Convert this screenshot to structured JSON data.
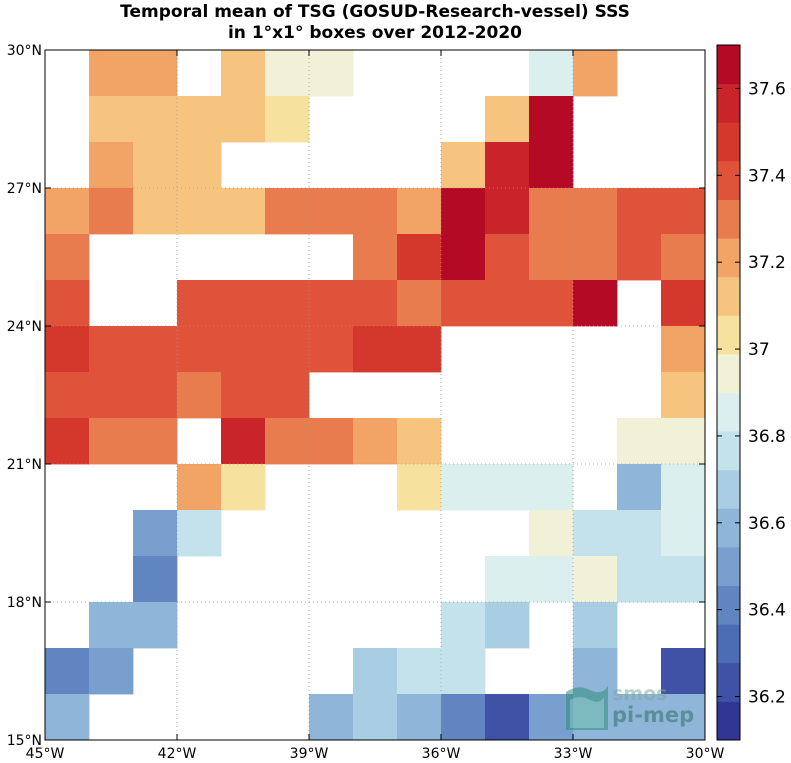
{
  "chart_data": {
    "type": "heatmap",
    "title": "Temporal mean of TSG (GOSUD-Research-vessel) SSS",
    "subtitle": "in 1°x1° boxes over 2012-2020",
    "x_ticks": [
      "45°W",
      "42°W",
      "39°W",
      "36°W",
      "33°W",
      "30°W"
    ],
    "y_ticks": [
      "15°N",
      "18°N",
      "21°N",
      "24°N",
      "27°N",
      "30°N"
    ],
    "lon_range": [
      -45,
      -30
    ],
    "lat_range": [
      15,
      30
    ],
    "cell_size_deg": 1,
    "colorbar": {
      "ticks": [
        "36.2",
        "36.4",
        "36.6",
        "36.8",
        "37",
        "37.2",
        "37.4",
        "37.6"
      ],
      "vmin": 36.1,
      "vmax": 37.7,
      "colors": [
        "#313695",
        "#3f52a6",
        "#4c6db5",
        "#6185c1",
        "#789fcd",
        "#8fb6d8",
        "#a9cde2",
        "#c4e2ec",
        "#dcefef",
        "#f0f1d6",
        "#f6e29e",
        "#f6c47e",
        "#f2a366",
        "#e97c4f",
        "#de5339",
        "#d4382d",
        "#c82429",
        "#b40a26"
      ]
    },
    "grid": true,
    "cells": [
      {
        "lon": -44,
        "lat": 29,
        "value": 37.24
      },
      {
        "lon": -43,
        "lat": 29,
        "value": 37.24
      },
      {
        "lon": -41,
        "lat": 29,
        "value": 37.08
      },
      {
        "lon": -40,
        "lat": 29,
        "value": 36.92
      },
      {
        "lon": -39,
        "lat": 29,
        "value": 36.92
      },
      {
        "lon": -34,
        "lat": 29,
        "value": 36.82
      },
      {
        "lon": -33,
        "lat": 29,
        "value": 37.24
      },
      {
        "lon": -44,
        "lat": 28,
        "value": 37.16
      },
      {
        "lon": -43,
        "lat": 28,
        "value": 37.08
      },
      {
        "lon": -42,
        "lat": 28,
        "value": 37.16
      },
      {
        "lon": -41,
        "lat": 28,
        "value": 37.08
      },
      {
        "lon": -40,
        "lat": 28,
        "value": 37.0
      },
      {
        "lon": -35,
        "lat": 28,
        "value": 37.08
      },
      {
        "lon": -34,
        "lat": 28,
        "value": 37.65
      },
      {
        "lon": -44,
        "lat": 27,
        "value": 37.24
      },
      {
        "lon": -43,
        "lat": 27,
        "value": 37.16
      },
      {
        "lon": -42,
        "lat": 27,
        "value": 37.16
      },
      {
        "lon": -36,
        "lat": 27,
        "value": 37.08
      },
      {
        "lon": -35,
        "lat": 27,
        "value": 37.55
      },
      {
        "lon": -34,
        "lat": 27,
        "value": 37.65
      },
      {
        "lon": -45,
        "lat": 26,
        "value": 37.24
      },
      {
        "lon": -44,
        "lat": 26,
        "value": 37.32
      },
      {
        "lon": -43,
        "lat": 26,
        "value": 37.16
      },
      {
        "lon": -42,
        "lat": 26,
        "value": 37.08
      },
      {
        "lon": -41,
        "lat": 26,
        "value": 37.08
      },
      {
        "lon": -40,
        "lat": 26,
        "value": 37.32
      },
      {
        "lon": -39,
        "lat": 26,
        "value": 37.32
      },
      {
        "lon": -38,
        "lat": 26,
        "value": 37.32
      },
      {
        "lon": -37,
        "lat": 26,
        "value": 37.24
      },
      {
        "lon": -36,
        "lat": 26,
        "value": 37.65
      },
      {
        "lon": -35,
        "lat": 26,
        "value": 37.55
      },
      {
        "lon": -34,
        "lat": 26,
        "value": 37.32
      },
      {
        "lon": -33,
        "lat": 26,
        "value": 37.32
      },
      {
        "lon": -32,
        "lat": 26,
        "value": 37.4
      },
      {
        "lon": -31,
        "lat": 26,
        "value": 37.4
      },
      {
        "lon": -45,
        "lat": 25,
        "value": 37.32
      },
      {
        "lon": -38,
        "lat": 25,
        "value": 37.32
      },
      {
        "lon": -37,
        "lat": 25,
        "value": 37.48
      },
      {
        "lon": -36,
        "lat": 25,
        "value": 37.65
      },
      {
        "lon": -35,
        "lat": 25,
        "value": 37.4
      },
      {
        "lon": -34,
        "lat": 25,
        "value": 37.32
      },
      {
        "lon": -33,
        "lat": 25,
        "value": 37.32
      },
      {
        "lon": -32,
        "lat": 25,
        "value": 37.4
      },
      {
        "lon": -31,
        "lat": 25,
        "value": 37.32
      },
      {
        "lon": -45,
        "lat": 24,
        "value": 37.4
      },
      {
        "lon": -42,
        "lat": 24,
        "value": 37.4
      },
      {
        "lon": -41,
        "lat": 24,
        "value": 37.4
      },
      {
        "lon": -40,
        "lat": 24,
        "value": 37.4
      },
      {
        "lon": -39,
        "lat": 24,
        "value": 37.4
      },
      {
        "lon": -38,
        "lat": 24,
        "value": 37.4
      },
      {
        "lon": -37,
        "lat": 24,
        "value": 37.32
      },
      {
        "lon": -36,
        "lat": 24,
        "value": 37.4
      },
      {
        "lon": -35,
        "lat": 24,
        "value": 37.4
      },
      {
        "lon": -34,
        "lat": 24,
        "value": 37.4
      },
      {
        "lon": -33,
        "lat": 24,
        "value": 37.65
      },
      {
        "lon": -31,
        "lat": 24,
        "value": 37.48
      },
      {
        "lon": -45,
        "lat": 23,
        "value": 37.48
      },
      {
        "lon": -44,
        "lat": 23,
        "value": 37.4
      },
      {
        "lon": -43,
        "lat": 23,
        "value": 37.4
      },
      {
        "lon": -42,
        "lat": 23,
        "value": 37.4
      },
      {
        "lon": -41,
        "lat": 23,
        "value": 37.4
      },
      {
        "lon": -40,
        "lat": 23,
        "value": 37.4
      },
      {
        "lon": -39,
        "lat": 23,
        "value": 37.4
      },
      {
        "lon": -38,
        "lat": 23,
        "value": 37.48
      },
      {
        "lon": -37,
        "lat": 23,
        "value": 37.48
      },
      {
        "lon": -31,
        "lat": 23,
        "value": 37.24
      },
      {
        "lon": -45,
        "lat": 22,
        "value": 37.4
      },
      {
        "lon": -44,
        "lat": 22,
        "value": 37.4
      },
      {
        "lon": -43,
        "lat": 22,
        "value": 37.4
      },
      {
        "lon": -42,
        "lat": 22,
        "value": 37.32
      },
      {
        "lon": -41,
        "lat": 22,
        "value": 37.4
      },
      {
        "lon": -40,
        "lat": 22,
        "value": 37.4
      },
      {
        "lon": -31,
        "lat": 22,
        "value": 37.08
      },
      {
        "lon": -45,
        "lat": 21,
        "value": 37.48
      },
      {
        "lon": -44,
        "lat": 21,
        "value": 37.32
      },
      {
        "lon": -43,
        "lat": 21,
        "value": 37.32
      },
      {
        "lon": -41,
        "lat": 21,
        "value": 37.55
      },
      {
        "lon": -40,
        "lat": 21,
        "value": 37.32
      },
      {
        "lon": -39,
        "lat": 21,
        "value": 37.32
      },
      {
        "lon": -38,
        "lat": 21,
        "value": 37.24
      },
      {
        "lon": -37,
        "lat": 21,
        "value": 37.16
      },
      {
        "lon": -32,
        "lat": 21,
        "value": 36.92
      },
      {
        "lon": -31,
        "lat": 21,
        "value": 36.92
      },
      {
        "lon": -42,
        "lat": 20,
        "value": 37.24
      },
      {
        "lon": -41,
        "lat": 20,
        "value": 37.0
      },
      {
        "lon": -37,
        "lat": 20,
        "value": 37.0
      },
      {
        "lon": -36,
        "lat": 20,
        "value": 36.82
      },
      {
        "lon": -35,
        "lat": 20,
        "value": 36.82
      },
      {
        "lon": -34,
        "lat": 20,
        "value": 36.82
      },
      {
        "lon": -32,
        "lat": 20,
        "value": 36.62
      },
      {
        "lon": -31,
        "lat": 20,
        "value": 36.82
      },
      {
        "lon": -43,
        "lat": 19,
        "value": 36.5
      },
      {
        "lon": -42,
        "lat": 19,
        "value": 36.75
      },
      {
        "lon": -34,
        "lat": 19,
        "value": 36.92
      },
      {
        "lon": -33,
        "lat": 19,
        "value": 36.75
      },
      {
        "lon": -32,
        "lat": 19,
        "value": 36.75
      },
      {
        "lon": -31,
        "lat": 19,
        "value": 36.82
      },
      {
        "lon": -43,
        "lat": 18,
        "value": 36.42
      },
      {
        "lon": -35,
        "lat": 18,
        "value": 36.82
      },
      {
        "lon": -34,
        "lat": 18,
        "value": 36.82
      },
      {
        "lon": -33,
        "lat": 18,
        "value": 36.92
      },
      {
        "lon": -32,
        "lat": 18,
        "value": 36.75
      },
      {
        "lon": -31,
        "lat": 18,
        "value": 36.75
      },
      {
        "lon": -44,
        "lat": 17,
        "value": 36.62
      },
      {
        "lon": -43,
        "lat": 17,
        "value": 36.55
      },
      {
        "lon": -36,
        "lat": 17,
        "value": 36.75
      },
      {
        "lon": -35,
        "lat": 17,
        "value": 36.68
      },
      {
        "lon": -33,
        "lat": 17,
        "value": 36.68
      },
      {
        "lon": -45,
        "lat": 16,
        "value": 36.42
      },
      {
        "lon": -44,
        "lat": 16,
        "value": 36.5
      },
      {
        "lon": -38,
        "lat": 16,
        "value": 36.68
      },
      {
        "lon": -37,
        "lat": 16,
        "value": 36.75
      },
      {
        "lon": -36,
        "lat": 16,
        "value": 36.75
      },
      {
        "lon": -33,
        "lat": 16,
        "value": 36.62
      },
      {
        "lon": -31,
        "lat": 16,
        "value": 36.25
      },
      {
        "lon": -45,
        "lat": 15,
        "value": 36.55
      },
      {
        "lon": -39,
        "lat": 15,
        "value": 36.62
      },
      {
        "lon": -38,
        "lat": 15,
        "value": 36.68
      },
      {
        "lon": -37,
        "lat": 15,
        "value": 36.62
      },
      {
        "lon": -36,
        "lat": 15,
        "value": 36.45
      },
      {
        "lon": -35,
        "lat": 15,
        "value": 36.2
      },
      {
        "lon": -34,
        "lat": 15,
        "value": 36.5
      },
      {
        "lon": -33,
        "lat": 15,
        "value": 36.55
      },
      {
        "lon": -32,
        "lat": 15,
        "value": 36.62
      },
      {
        "lon": -31,
        "lat": 15,
        "value": 36.55
      }
    ]
  },
  "logo": {
    "line1": "smos",
    "line2": "pi-mep"
  }
}
